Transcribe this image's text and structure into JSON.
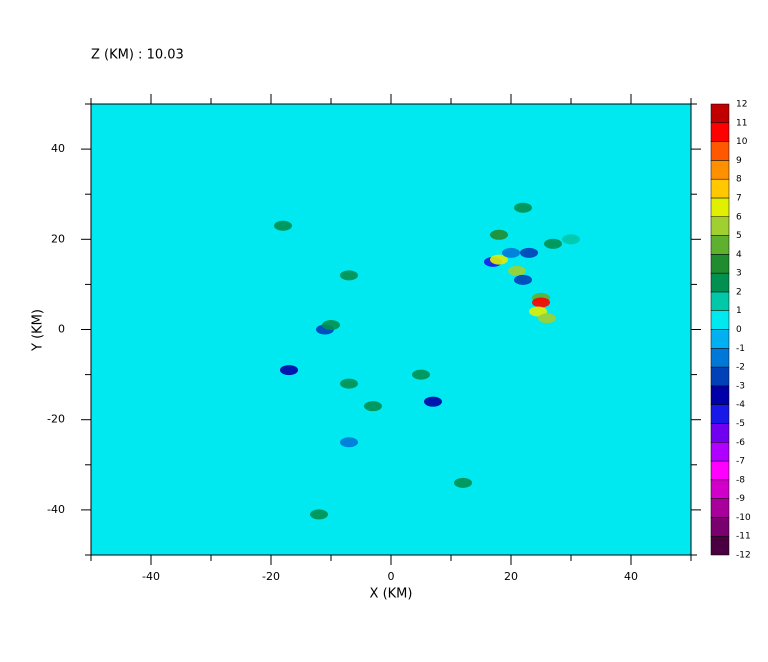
{
  "chart_data": {
    "type": "contour",
    "title": "Z (KM) : 10.03",
    "x_label": "X (KM)",
    "y_label": "Y (KM)",
    "xlim": [
      -50,
      50
    ],
    "ylim": [
      -50,
      50
    ],
    "xticks": [
      -40,
      -20,
      0,
      20,
      40
    ],
    "yticks": [
      -40,
      -20,
      0,
      20,
      40
    ],
    "xminorticks": [
      -50,
      -30,
      -10,
      10,
      30,
      50
    ],
    "yminorticks": [
      -50,
      -30,
      -10,
      10,
      30,
      50
    ],
    "background_color": "#00e8f0",
    "levels": [
      -12,
      -11,
      -10,
      -9,
      -8,
      -7,
      -6,
      -5,
      -4,
      -3,
      -2,
      -1,
      0,
      1,
      2,
      3,
      4,
      5,
      6,
      7,
      8,
      9,
      10,
      11,
      12
    ],
    "colors": [
      "#4a0040",
      "#7a0070",
      "#a8009a",
      "#d000c8",
      "#ff00ff",
      "#b000ff",
      "#7000f0",
      "#1818e8",
      "#0000a8",
      "#0040b8",
      "#0078d8",
      "#00b0f0",
      "#00e8f0",
      "#00c8a8",
      "#009050",
      "#208c30",
      "#60b030",
      "#a0d030",
      "#e0f000",
      "#ffc800",
      "#ff9000",
      "#ff5800",
      "#ff0000",
      "#c00000"
    ],
    "features": [
      {
        "x": 18,
        "y": 21,
        "value": 3.5
      },
      {
        "x": 17,
        "y": 15,
        "value": -4.5
      },
      {
        "x": 18,
        "y": 15.5,
        "value": 6
      },
      {
        "x": 21,
        "y": 13,
        "value": 5.5
      },
      {
        "x": 22,
        "y": 11,
        "value": -3
      },
      {
        "x": 25,
        "y": 7,
        "value": 4
      },
      {
        "x": 25,
        "y": 6,
        "value": 10
      },
      {
        "x": 24.5,
        "y": 4,
        "value": 6
      },
      {
        "x": 26,
        "y": 2.5,
        "value": 5
      },
      {
        "x": 20,
        "y": 17,
        "value": -2
      },
      {
        "x": 23,
        "y": 17,
        "value": -2.5
      },
      {
        "x": 27,
        "y": 19,
        "value": 2
      },
      {
        "x": 30,
        "y": 20,
        "value": 1.5
      },
      {
        "x": -7,
        "y": 12,
        "value": 2.5
      },
      {
        "x": -11,
        "y": 0,
        "value": -3
      },
      {
        "x": -10,
        "y": 1,
        "value": 2
      },
      {
        "x": -17,
        "y": -9,
        "value": -4
      },
      {
        "x": -18,
        "y": 23,
        "value": 2
      },
      {
        "x": 7,
        "y": -16,
        "value": -4
      },
      {
        "x": 5,
        "y": -10,
        "value": 2
      },
      {
        "x": -3,
        "y": -17,
        "value": 2
      },
      {
        "x": -7,
        "y": -25,
        "value": -2
      },
      {
        "x": -12,
        "y": -41,
        "value": 2.5
      },
      {
        "x": 12,
        "y": -34,
        "value": 2
      },
      {
        "x": -7,
        "y": -12,
        "value": 2
      },
      {
        "x": 22,
        "y": 27,
        "value": 2
      }
    ]
  }
}
